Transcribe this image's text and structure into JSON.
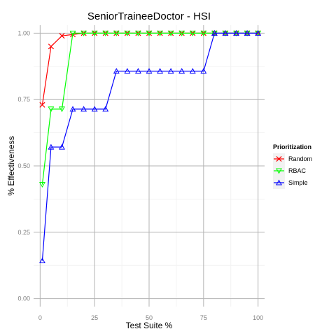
{
  "chart_data": {
    "type": "line",
    "title": "SeniorTraineeDoctor - HSI",
    "xlabel": "Test Suite %",
    "ylabel": "% Effectiveness",
    "xlim": [
      -3,
      103
    ],
    "ylim": [
      -0.03,
      1.03
    ],
    "x_ticks": [
      0,
      25,
      50,
      75,
      100
    ],
    "x_tick_labels": [
      "0",
      "25",
      "50",
      "75",
      "100"
    ],
    "y_ticks": [
      0.0,
      0.25,
      0.5,
      0.75,
      1.0
    ],
    "y_tick_labels": [
      "0.00",
      "0.25",
      "0.50",
      "0.75",
      "1.00"
    ],
    "grid": true,
    "legend": {
      "title": "Prioritization",
      "position": "right"
    },
    "series": [
      {
        "name": "Random",
        "color": "#ff0000",
        "marker": "cross",
        "x": [
          1,
          5,
          10,
          15,
          20,
          25,
          30,
          35,
          40,
          45,
          50,
          55,
          60,
          65,
          70,
          75,
          80,
          85,
          90,
          95,
          100
        ],
        "y": [
          0.73,
          0.95,
          0.99,
          0.995,
          1.0,
          1.0,
          1.0,
          1.0,
          1.0,
          1.0,
          1.0,
          1.0,
          1.0,
          1.0,
          1.0,
          1.0,
          1.0,
          1.0,
          1.0,
          1.0,
          1.0
        ]
      },
      {
        "name": "RBAC",
        "color": "#00ff00",
        "marker": "triangle-down",
        "x": [
          1,
          5,
          10,
          15,
          20,
          25,
          30,
          35,
          40,
          45,
          50,
          55,
          60,
          65,
          70,
          75,
          80,
          85,
          90,
          95,
          100
        ],
        "y": [
          0.43,
          0.714,
          0.714,
          1.0,
          1.0,
          1.0,
          1.0,
          1.0,
          1.0,
          1.0,
          1.0,
          1.0,
          1.0,
          1.0,
          1.0,
          1.0,
          1.0,
          1.0,
          1.0,
          1.0,
          1.0
        ]
      },
      {
        "name": "Simple",
        "color": "#0000ff",
        "marker": "triangle-up",
        "x": [
          1,
          5,
          10,
          15,
          20,
          25,
          30,
          35,
          40,
          45,
          50,
          55,
          60,
          65,
          70,
          75,
          80,
          85,
          90,
          95,
          100
        ],
        "y": [
          0.143,
          0.571,
          0.571,
          0.714,
          0.714,
          0.714,
          0.714,
          0.857,
          0.857,
          0.857,
          0.857,
          0.857,
          0.857,
          0.857,
          0.857,
          0.857,
          1.0,
          1.0,
          1.0,
          1.0,
          1.0
        ]
      }
    ]
  }
}
